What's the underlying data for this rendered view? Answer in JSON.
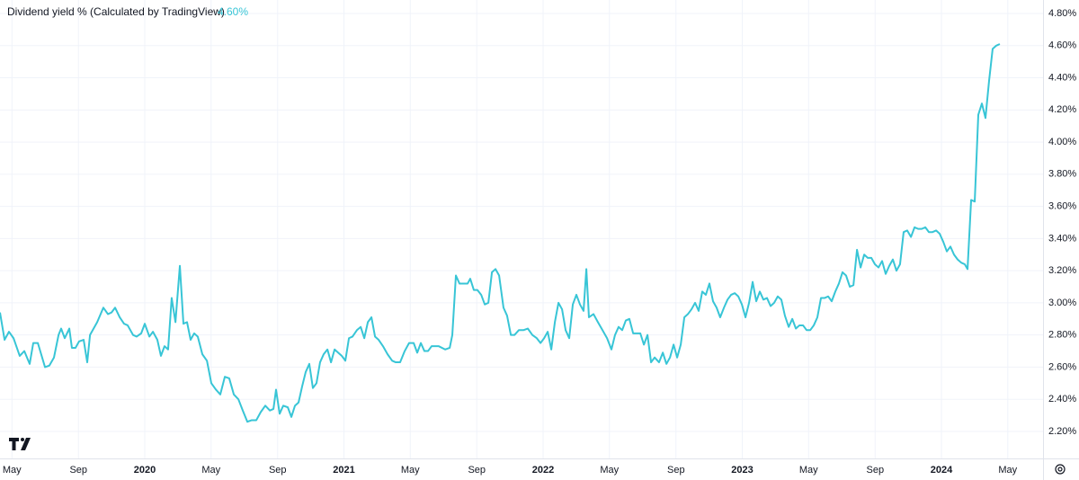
{
  "chart_data": {
    "type": "line",
    "title": "Dividend yield % (Calculated by TradingView)",
    "grid": true,
    "xlim": [
      2019.273,
      2024.51
    ],
    "ylim": [
      2.032,
      4.884
    ],
    "xticks": [
      {
        "value": 2019.333,
        "label": "May"
      },
      {
        "value": 2019.667,
        "label": "Sep"
      },
      2020,
      {
        "value": 2020.333,
        "label": "May"
      },
      {
        "value": 2020.667,
        "label": "Sep"
      },
      2021,
      {
        "value": 2021.333,
        "label": "May"
      },
      {
        "value": 2021.667,
        "label": "Sep"
      },
      2022,
      {
        "value": 2022.333,
        "label": "May"
      },
      {
        "value": 2022.667,
        "label": "Sep"
      },
      2023,
      {
        "value": 2023.333,
        "label": "May"
      },
      {
        "value": 2023.667,
        "label": "Sep"
      },
      2024,
      {
        "value": 2024.333,
        "label": "May"
      }
    ],
    "yticks": [
      {
        "value": 2.2,
        "label": "2.20%"
      },
      {
        "value": 2.4,
        "label": "2.40%"
      },
      {
        "value": 2.6,
        "label": "2.60%"
      },
      {
        "value": 2.8,
        "label": "2.80%"
      },
      {
        "value": 3.0,
        "label": "3.00%"
      },
      {
        "value": 3.2,
        "label": "3.20%"
      },
      {
        "value": 3.4,
        "label": "3.40%"
      },
      {
        "value": 3.6,
        "label": "3.60%"
      },
      {
        "value": 3.8,
        "label": "3.80%"
      },
      {
        "value": 4.0,
        "label": "4.00%"
      },
      {
        "value": 4.2,
        "label": "4.20%"
      },
      {
        "value": 4.4,
        "label": "4.40%"
      },
      {
        "value": 4.6,
        "label": "4.60%"
      },
      {
        "value": 4.8,
        "label": "4.80%"
      }
    ],
    "series": [
      {
        "name": "Dividend yield %",
        "color": "#38c5d6",
        "last_value_label": "4.60%",
        "x": [
          2019.273,
          2019.296,
          2019.318,
          2019.341,
          2019.372,
          2019.395,
          2019.422,
          2019.44,
          2019.463,
          2019.499,
          2019.521,
          2019.544,
          2019.567,
          2019.58,
          2019.598,
          2019.621,
          2019.634,
          2019.652,
          2019.67,
          2019.693,
          2019.711,
          2019.725,
          2019.761,
          2019.792,
          2019.815,
          2019.833,
          2019.851,
          2019.874,
          2019.896,
          2019.914,
          2019.941,
          2019.959,
          2019.982,
          2020.0,
          2020.023,
          2020.041,
          2020.063,
          2020.081,
          2020.099,
          2020.117,
          2020.135,
          2020.154,
          2020.176,
          2020.194,
          2020.212,
          2020.23,
          2020.248,
          2020.266,
          2020.289,
          2020.312,
          2020.334,
          2020.357,
          2020.379,
          2020.402,
          2020.424,
          2020.447,
          2020.47,
          2020.492,
          2020.515,
          2020.537,
          2020.56,
          2020.582,
          2020.605,
          2020.628,
          2020.646,
          2020.659,
          2020.677,
          2020.695,
          2020.718,
          2020.736,
          2020.754,
          2020.772,
          2020.79,
          2020.808,
          2020.826,
          2020.844,
          2020.862,
          2020.88,
          2020.898,
          2020.917,
          2020.935,
          2020.953,
          2020.971,
          2020.989,
          2021.007,
          2021.025,
          2021.043,
          2021.065,
          2021.084,
          2021.102,
          2021.12,
          2021.138,
          2021.156,
          2021.174,
          2021.196,
          2021.219,
          2021.242,
          2021.26,
          2021.282,
          2021.305,
          2021.327,
          2021.35,
          2021.368,
          2021.386,
          2021.404,
          2021.422,
          2021.44,
          2021.476,
          2021.508,
          2021.531,
          2021.544,
          2021.562,
          2021.58,
          2021.598,
          2021.621,
          2021.634,
          2021.652,
          2021.67,
          2021.689,
          2021.707,
          2021.725,
          2021.743,
          2021.761,
          2021.779,
          2021.801,
          2021.819,
          2021.838,
          2021.856,
          2021.878,
          2021.901,
          2021.923,
          2021.946,
          2021.968,
          2021.987,
          2022.005,
          2022.023,
          2022.041,
          2022.059,
          2022.077,
          2022.095,
          2022.113,
          2022.131,
          2022.149,
          2022.167,
          2022.185,
          2022.203,
          2022.217,
          2022.23,
          2022.253,
          2022.275,
          2022.298,
          2022.321,
          2022.343,
          2022.361,
          2022.379,
          2022.397,
          2022.415,
          2022.433,
          2022.452,
          2022.47,
          2022.488,
          2022.506,
          2022.524,
          2022.542,
          2022.56,
          2022.582,
          2022.601,
          2022.619,
          2022.637,
          2022.655,
          2022.673,
          2022.691,
          2022.709,
          2022.727,
          2022.745,
          2022.763,
          2022.781,
          2022.799,
          2022.817,
          2022.835,
          2022.853,
          2022.871,
          2022.889,
          2022.908,
          2022.926,
          2022.944,
          2022.962,
          2022.98,
          2022.998,
          2023.016,
          2023.034,
          2023.052,
          2023.07,
          2023.088,
          2023.106,
          2023.124,
          2023.142,
          2023.16,
          2023.178,
          2023.196,
          2023.214,
          2023.233,
          2023.251,
          2023.269,
          2023.287,
          2023.305,
          2023.323,
          2023.341,
          2023.359,
          2023.377,
          2023.395,
          2023.413,
          2023.431,
          2023.449,
          2023.467,
          2023.485,
          2023.503,
          2023.521,
          2023.54,
          2023.558,
          2023.576,
          2023.594,
          2023.612,
          2023.63,
          2023.648,
          2023.666,
          2023.684,
          2023.702,
          2023.72,
          2023.738,
          2023.756,
          2023.774,
          2023.792,
          2023.81,
          2023.828,
          2023.847,
          2023.865,
          2023.883,
          2023.901,
          2023.919,
          2023.937,
          2023.955,
          2023.973,
          2023.991,
          2024.009,
          2024.027,
          2024.045,
          2024.063,
          2024.081,
          2024.099,
          2024.117,
          2024.131,
          2024.149,
          2024.167,
          2024.185,
          2024.203,
          2024.221,
          2024.239,
          2024.257,
          2024.275,
          2024.293
        ],
        "values": [
          2.94,
          2.77,
          2.82,
          2.78,
          2.67,
          2.7,
          2.62,
          2.75,
          2.75,
          2.6,
          2.61,
          2.66,
          2.8,
          2.84,
          2.78,
          2.84,
          2.72,
          2.72,
          2.76,
          2.77,
          2.63,
          2.8,
          2.88,
          2.97,
          2.93,
          2.94,
          2.97,
          2.91,
          2.87,
          2.86,
          2.8,
          2.79,
          2.81,
          2.87,
          2.79,
          2.82,
          2.77,
          2.67,
          2.73,
          2.71,
          3.03,
          2.88,
          3.23,
          2.87,
          2.88,
          2.77,
          2.81,
          2.79,
          2.68,
          2.64,
          2.5,
          2.46,
          2.43,
          2.54,
          2.53,
          2.43,
          2.4,
          2.33,
          2.26,
          2.27,
          2.27,
          2.32,
          2.36,
          2.33,
          2.34,
          2.46,
          2.31,
          2.36,
          2.35,
          2.29,
          2.36,
          2.38,
          2.48,
          2.57,
          2.62,
          2.47,
          2.5,
          2.63,
          2.68,
          2.71,
          2.63,
          2.71,
          2.69,
          2.67,
          2.64,
          2.78,
          2.79,
          2.83,
          2.85,
          2.78,
          2.88,
          2.91,
          2.79,
          2.77,
          2.73,
          2.68,
          2.64,
          2.63,
          2.63,
          2.7,
          2.75,
          2.75,
          2.69,
          2.75,
          2.7,
          2.7,
          2.73,
          2.73,
          2.71,
          2.72,
          2.8,
          3.17,
          3.12,
          3.12,
          3.12,
          3.15,
          3.08,
          3.08,
          3.05,
          2.99,
          3.0,
          3.19,
          3.21,
          3.17,
          2.97,
          2.92,
          2.8,
          2.8,
          2.83,
          2.83,
          2.84,
          2.8,
          2.78,
          2.75,
          2.78,
          2.82,
          2.71,
          2.88,
          3.0,
          2.96,
          2.83,
          2.78,
          2.99,
          3.05,
          2.99,
          2.95,
          3.21,
          2.91,
          2.93,
          2.88,
          2.83,
          2.78,
          2.71,
          2.8,
          2.85,
          2.83,
          2.89,
          2.9,
          2.81,
          2.81,
          2.81,
          2.74,
          2.8,
          2.63,
          2.66,
          2.63,
          2.69,
          2.62,
          2.66,
          2.74,
          2.66,
          2.74,
          2.91,
          2.93,
          2.96,
          3.0,
          2.95,
          3.07,
          3.05,
          3.12,
          3.01,
          2.97,
          2.91,
          2.97,
          3.02,
          3.05,
          3.06,
          3.04,
          2.99,
          2.91,
          3.0,
          3.13,
          3.01,
          3.07,
          3.02,
          3.03,
          2.98,
          3.0,
          3.04,
          3.02,
          2.92,
          2.85,
          2.9,
          2.84,
          2.86,
          2.86,
          2.83,
          2.83,
          2.86,
          2.91,
          3.03,
          3.03,
          3.04,
          3.01,
          3.07,
          3.12,
          3.19,
          3.17,
          3.1,
          3.11,
          3.33,
          3.22,
          3.3,
          3.28,
          3.28,
          3.24,
          3.22,
          3.26,
          3.18,
          3.23,
          3.27,
          3.2,
          3.24,
          3.44,
          3.45,
          3.41,
          3.47,
          3.46,
          3.46,
          3.47,
          3.44,
          3.44,
          3.45,
          3.43,
          3.38,
          3.32,
          3.35,
          3.3,
          3.27,
          3.25,
          3.24,
          3.21,
          3.64,
          3.63,
          4.17,
          4.24,
          4.15,
          4.38,
          4.58,
          4.6,
          4.61
        ]
      }
    ]
  }
}
